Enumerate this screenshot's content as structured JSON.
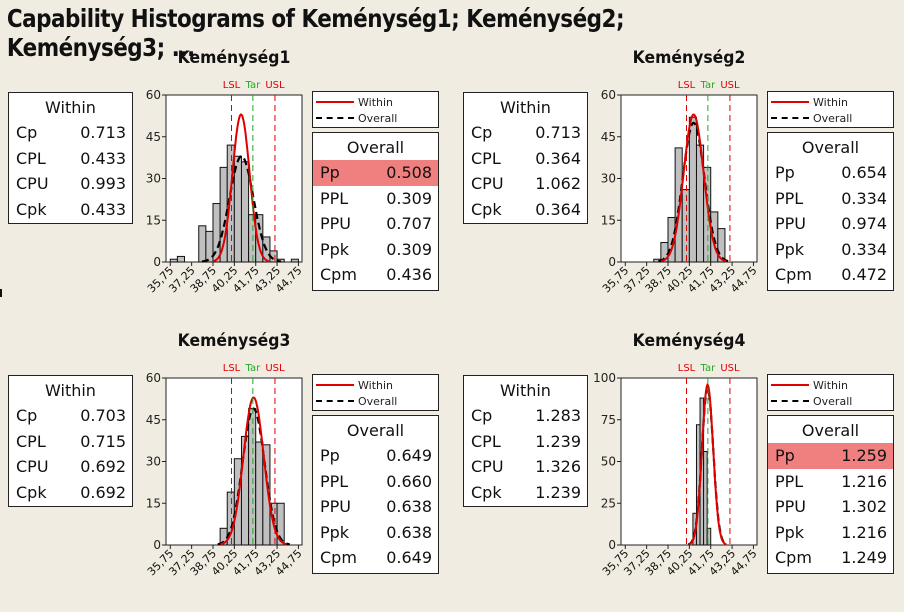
{
  "title": "Capability Histograms of Keménység1; Keménység2; Keménység3; ...",
  "colors": {
    "background": "#f0ece2",
    "within_curve": "#e00000",
    "overall_curve": "#000000",
    "spec_limit": "#e00000",
    "target": "#22aa22",
    "bar_fill": "#c0c0c0",
    "highlight": "#f08080"
  },
  "legend": {
    "within_label": "Within",
    "overall_label": "Overall"
  },
  "chart_data": [
    {
      "type": "bar",
      "title": "Keménység1",
      "xlabel": "",
      "ylabel": "",
      "x_ticks": [
        "35,75",
        "37,25",
        "38,75",
        "40,25",
        "41,75",
        "43,25",
        "44,75"
      ],
      "x_tick_values": [
        35.75,
        37.25,
        38.75,
        40.25,
        41.75,
        43.25,
        44.75
      ],
      "xlim": [
        35.45,
        45.0
      ],
      "y_ticks": [
        0,
        15,
        30,
        45,
        60
      ],
      "ylim": [
        0,
        60
      ],
      "bin_width": 0.5,
      "bin_start": 35.75,
      "values": [
        1,
        2,
        0,
        0,
        13,
        11,
        21,
        34,
        42,
        38,
        36,
        17,
        17,
        9,
        4,
        1,
        0,
        1
      ],
      "bars_override": [
        {
          "start": 35.75,
          "v": 1
        },
        {
          "start": 36.25,
          "v": 2
        },
        {
          "start": 36.5,
          "v": 2
        }
      ],
      "spec": {
        "LSL": 40.05,
        "Target": 41.55,
        "USL": 43.1
      },
      "spec_labels": [
        "LSL",
        "Tar",
        "USL"
      ],
      "within_curve": {
        "mean": 40.72,
        "sd": 0.6,
        "peak": 53
      },
      "overall_curve": {
        "mean": 40.75,
        "sd": 0.84,
        "peak": 38
      },
      "within_stats": {
        "header": "Within",
        "rows": [
          {
            "label": "Cp",
            "value": "0.713"
          },
          {
            "label": "CPL",
            "value": "0.433"
          },
          {
            "label": "CPU",
            "value": "0.993"
          },
          {
            "label": "Cpk",
            "value": "0.433"
          }
        ]
      },
      "overall_stats": {
        "header": "Overall",
        "rows": [
          {
            "label": "Pp",
            "value": "0.508",
            "highlight": true
          },
          {
            "label": "PPL",
            "value": "0.309"
          },
          {
            "label": "PPU",
            "value": "0.707"
          },
          {
            "label": "Ppk",
            "value": "0.309"
          },
          {
            "label": "Cpm",
            "value": "0.436"
          }
        ]
      }
    },
    {
      "type": "bar",
      "title": "Keménység2",
      "xlabel": "",
      "ylabel": "",
      "x_ticks": [
        "35,75",
        "37,25",
        "38,75",
        "40,25",
        "41,75",
        "43,25",
        "44,75"
      ],
      "x_tick_values": [
        35.75,
        37.25,
        38.75,
        40.25,
        41.75,
        43.25,
        44.75
      ],
      "xlim": [
        35.45,
        45.0
      ],
      "y_ticks": [
        0,
        15,
        30,
        45,
        60
      ],
      "ylim": [
        0,
        60
      ],
      "bin_width": 0.5,
      "bin_start": 37.75,
      "values": [
        1,
        7,
        16,
        41,
        26,
        52,
        42,
        34,
        18,
        12
      ],
      "spec": {
        "LSL": 40.05,
        "Target": 41.55,
        "USL": 43.1
      },
      "spec_labels": [
        "LSL",
        "Tar",
        "USL"
      ],
      "within_curve": {
        "mean": 40.55,
        "sd": 0.7,
        "peak": 53
      },
      "overall_curve": {
        "mean": 40.55,
        "sd": 0.76,
        "peak": 50
      },
      "within_stats": {
        "header": "Within",
        "rows": [
          {
            "label": "Cp",
            "value": "0.713"
          },
          {
            "label": "CPL",
            "value": "0.364"
          },
          {
            "label": "CPU",
            "value": "1.062"
          },
          {
            "label": "Cpk",
            "value": "0.364"
          }
        ]
      },
      "overall_stats": {
        "header": "Overall",
        "rows": [
          {
            "label": "Pp",
            "value": "0.654"
          },
          {
            "label": "PPL",
            "value": "0.334"
          },
          {
            "label": "PPU",
            "value": "0.974"
          },
          {
            "label": "Ppk",
            "value": "0.334"
          },
          {
            "label": "Cpm",
            "value": "0.472"
          }
        ]
      }
    },
    {
      "type": "bar",
      "title": "Keménység3",
      "xlabel": "",
      "ylabel": "",
      "x_ticks": [
        "35,75",
        "37,25",
        "38,75",
        "40,25",
        "41,75",
        "43,25",
        "44,75"
      ],
      "x_tick_values": [
        35.75,
        37.25,
        38.75,
        40.25,
        41.75,
        43.25,
        44.75
      ],
      "xlim": [
        35.45,
        45.0
      ],
      "y_ticks": [
        0,
        15,
        30,
        45,
        60
      ],
      "ylim": [
        0,
        60
      ],
      "bin_width": 0.5,
      "bin_start": 39.25,
      "values": [
        6,
        19,
        31,
        39,
        49,
        37,
        36,
        15,
        15
      ],
      "spec": {
        "LSL": 40.05,
        "Target": 41.55,
        "USL": 43.1
      },
      "spec_labels": [
        "LSL",
        "Tar",
        "USL"
      ],
      "within_curve": {
        "mean": 41.6,
        "sd": 0.71,
        "peak": 53
      },
      "overall_curve": {
        "mean": 41.6,
        "sd": 0.77,
        "peak": 49
      },
      "within_stats": {
        "header": "Within",
        "rows": [
          {
            "label": "Cp",
            "value": "0.703"
          },
          {
            "label": "CPL",
            "value": "0.715"
          },
          {
            "label": "CPU",
            "value": "0.692"
          },
          {
            "label": "Cpk",
            "value": "0.692"
          }
        ]
      },
      "overall_stats": {
        "header": "Overall",
        "rows": [
          {
            "label": "Pp",
            "value": "0.649"
          },
          {
            "label": "PPL",
            "value": "0.660"
          },
          {
            "label": "PPU",
            "value": "0.638"
          },
          {
            "label": "Ppk",
            "value": "0.638"
          },
          {
            "label": "Cpm",
            "value": "0.649"
          }
        ]
      }
    },
    {
      "type": "bar",
      "title": "Keménység4",
      "xlabel": "",
      "ylabel": "",
      "x_ticks": [
        "35,75",
        "37,25",
        "38,75",
        "40,25",
        "41,75",
        "43,25",
        "44,75"
      ],
      "x_tick_values": [
        35.75,
        37.25,
        38.75,
        40.25,
        41.75,
        43.25,
        44.75
      ],
      "xlim": [
        35.45,
        45.0
      ],
      "y_ticks": [
        0,
        25,
        50,
        75,
        100
      ],
      "ylim": [
        0,
        100
      ],
      "bin_width": 0.25,
      "bin_start": 40.5,
      "values": [
        19,
        72,
        88,
        56,
        10
      ],
      "spec": {
        "LSL": 40.05,
        "Target": 41.55,
        "USL": 43.1
      },
      "spec_labels": [
        "LSL",
        "Tar",
        "USL"
      ],
      "within_curve": {
        "mean": 41.53,
        "sd": 0.39,
        "peak": 96
      },
      "overall_curve": {
        "mean": 41.53,
        "sd": 0.4,
        "peak": 94
      },
      "within_stats": {
        "header": "Within",
        "rows": [
          {
            "label": "Cp",
            "value": "1.283"
          },
          {
            "label": "CPL",
            "value": "1.239"
          },
          {
            "label": "CPU",
            "value": "1.326"
          },
          {
            "label": "Cpk",
            "value": "1.239"
          }
        ]
      },
      "overall_stats": {
        "header": "Overall",
        "rows": [
          {
            "label": "Pp",
            "value": "1.259",
            "highlight": true
          },
          {
            "label": "PPL",
            "value": "1.216"
          },
          {
            "label": "PPU",
            "value": "1.302"
          },
          {
            "label": "Ppk",
            "value": "1.216"
          },
          {
            "label": "Cpm",
            "value": "1.249"
          }
        ]
      }
    }
  ]
}
